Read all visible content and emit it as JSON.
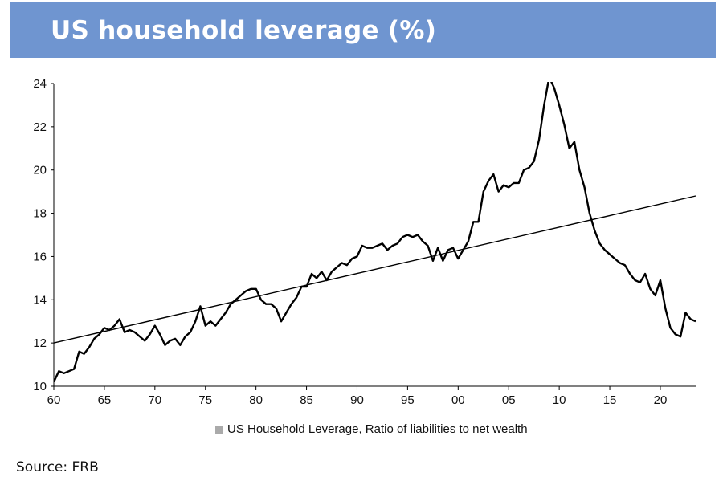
{
  "header": {
    "title": "US household leverage (%)"
  },
  "source": "Source: FRB",
  "colors": {
    "header_bg": "#6f95d0",
    "line": "#000000",
    "trend": "#000000"
  },
  "chart_data": {
    "type": "line",
    "title": "US household leverage (%)",
    "xlabel": "",
    "ylabel": "",
    "xlim": [
      1960,
      2023.5
    ],
    "ylim": [
      10,
      24
    ],
    "x_ticks": [
      {
        "value": 1960,
        "label": "60"
      },
      {
        "value": 1965,
        "label": "65"
      },
      {
        "value": 1970,
        "label": "70"
      },
      {
        "value": 1975,
        "label": "75"
      },
      {
        "value": 1980,
        "label": "80"
      },
      {
        "value": 1985,
        "label": "85"
      },
      {
        "value": 1990,
        "label": "90"
      },
      {
        "value": 1995,
        "label": "95"
      },
      {
        "value": 2000,
        "label": "00"
      },
      {
        "value": 2005,
        "label": "05"
      },
      {
        "value": 2010,
        "label": "10"
      },
      {
        "value": 2015,
        "label": "15"
      },
      {
        "value": 2020,
        "label": "20"
      }
    ],
    "y_ticks": [
      10,
      12,
      14,
      16,
      18,
      20,
      22,
      24
    ],
    "grid": false,
    "legend_position": "bottom-center",
    "series": [
      {
        "name": "US Household Leverage, Ratio of liabilities to net wealth",
        "x": [
          1960.0,
          1960.5,
          1961.0,
          1961.5,
          1962.0,
          1962.5,
          1963.0,
          1963.5,
          1964.0,
          1964.5,
          1965.0,
          1965.5,
          1966.0,
          1966.5,
          1967.0,
          1967.5,
          1968.0,
          1968.5,
          1969.0,
          1969.5,
          1970.0,
          1970.5,
          1971.0,
          1971.5,
          1972.0,
          1972.5,
          1973.0,
          1973.5,
          1974.0,
          1974.5,
          1975.0,
          1975.5,
          1976.0,
          1976.5,
          1977.0,
          1977.5,
          1978.0,
          1978.5,
          1979.0,
          1979.5,
          1980.0,
          1980.5,
          1981.0,
          1981.5,
          1982.0,
          1982.5,
          1983.0,
          1983.5,
          1984.0,
          1984.5,
          1985.0,
          1985.5,
          1986.0,
          1986.5,
          1987.0,
          1987.5,
          1988.0,
          1988.5,
          1989.0,
          1989.5,
          1990.0,
          1990.5,
          1991.0,
          1991.5,
          1992.0,
          1992.5,
          1993.0,
          1993.5,
          1994.0,
          1994.5,
          1995.0,
          1995.5,
          1996.0,
          1996.5,
          1997.0,
          1997.5,
          1998.0,
          1998.5,
          1999.0,
          1999.5,
          2000.0,
          2000.5,
          2001.0,
          2001.5,
          2002.0,
          2002.5,
          2003.0,
          2003.5,
          2004.0,
          2004.5,
          2005.0,
          2005.5,
          2006.0,
          2006.5,
          2007.0,
          2007.5,
          2008.0,
          2008.5,
          2009.0,
          2009.5,
          2010.0,
          2010.5,
          2011.0,
          2011.5,
          2012.0,
          2012.5,
          2013.0,
          2013.5,
          2014.0,
          2014.5,
          2015.0,
          2015.5,
          2016.0,
          2016.5,
          2017.0,
          2017.5,
          2018.0,
          2018.5,
          2019.0,
          2019.5,
          2020.0,
          2020.5,
          2021.0,
          2021.5,
          2022.0,
          2022.5,
          2023.0,
          2023.5
        ],
        "values": [
          10.2,
          10.7,
          10.6,
          10.7,
          10.8,
          11.6,
          11.5,
          11.8,
          12.2,
          12.4,
          12.7,
          12.6,
          12.8,
          13.1,
          12.5,
          12.6,
          12.5,
          12.3,
          12.1,
          12.4,
          12.8,
          12.4,
          11.9,
          12.1,
          12.2,
          11.9,
          12.3,
          12.5,
          13.0,
          13.7,
          12.8,
          13.0,
          12.8,
          13.1,
          13.4,
          13.8,
          14.0,
          14.2,
          14.4,
          14.5,
          14.5,
          14.0,
          13.8,
          13.8,
          13.6,
          13.0,
          13.4,
          13.8,
          14.1,
          14.6,
          14.6,
          15.2,
          15.0,
          15.3,
          14.9,
          15.3,
          15.5,
          15.7,
          15.6,
          15.9,
          16.0,
          16.5,
          16.4,
          16.4,
          16.5,
          16.6,
          16.3,
          16.5,
          16.6,
          16.9,
          17.0,
          16.9,
          17.0,
          16.7,
          16.5,
          15.8,
          16.4,
          15.8,
          16.3,
          16.4,
          15.9,
          16.3,
          16.7,
          17.6,
          17.6,
          19.0,
          19.5,
          19.8,
          19.0,
          19.3,
          19.2,
          19.4,
          19.4,
          20.0,
          20.1,
          20.4,
          21.4,
          23.0,
          24.3,
          23.8,
          23.0,
          22.1,
          21.0,
          21.3,
          20.0,
          19.2,
          18.0,
          17.2,
          16.6,
          16.3,
          16.1,
          15.9,
          15.7,
          15.6,
          15.2,
          14.9,
          14.8,
          15.2,
          14.5,
          14.2,
          14.9,
          13.6,
          12.7,
          12.4,
          12.3,
          13.4,
          13.1,
          13.0
        ]
      },
      {
        "name": "",
        "x": [
          1960,
          2023.5
        ],
        "values": [
          12.0,
          18.8
        ]
      }
    ]
  }
}
